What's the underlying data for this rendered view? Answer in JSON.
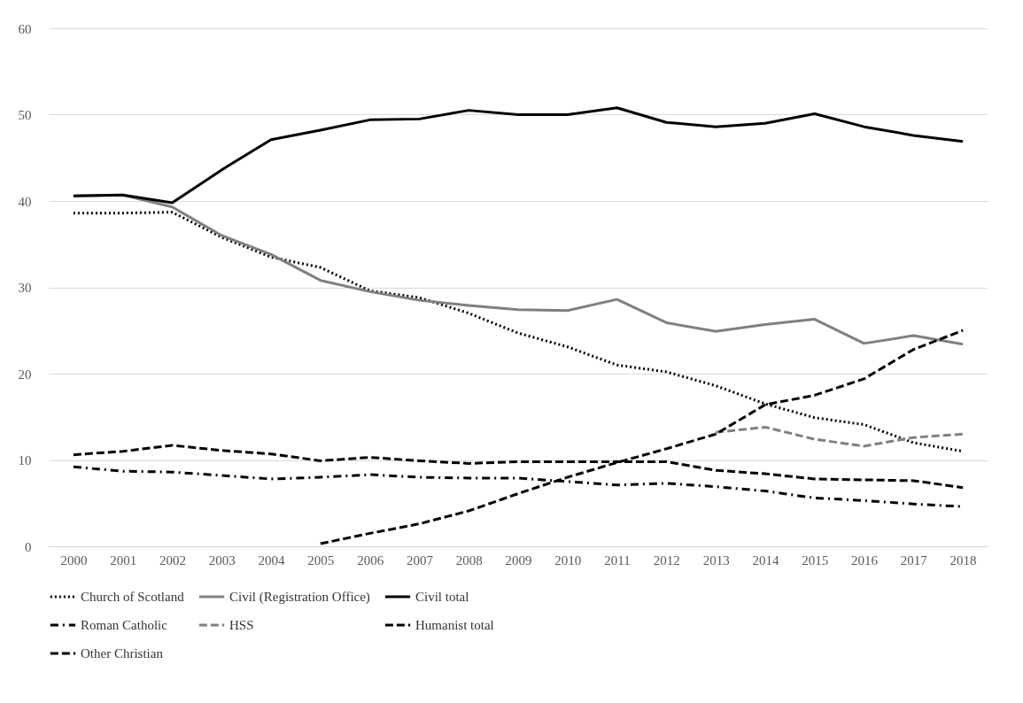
{
  "chart_data": {
    "type": "line",
    "categories": [
      "2000",
      "2001",
      "2002",
      "2003",
      "2004",
      "2005",
      "2006",
      "2007",
      "2008",
      "2009",
      "2010",
      "2011",
      "2012",
      "2013",
      "2014",
      "2015",
      "2016",
      "2017",
      "2018"
    ],
    "series": [
      {
        "name": "Church of Scotland",
        "color": "#000000",
        "line_style": "dotted",
        "values": [
          38.6,
          38.6,
          38.7,
          35.8,
          33.5,
          32.3,
          29.6,
          28.8,
          27.0,
          24.7,
          23.1,
          21.0,
          20.2,
          18.6,
          16.5,
          14.9,
          14.1,
          12.0,
          11.0
        ]
      },
      {
        "name": "Civil (Registration Office)",
        "color": "#808080",
        "line_style": "solid",
        "values": [
          40.6,
          40.7,
          39.3,
          36.0,
          33.8,
          30.8,
          29.5,
          28.5,
          27.9,
          27.4,
          27.3,
          28.6,
          25.9,
          24.9,
          25.7,
          26.3,
          23.5,
          24.4,
          23.4
        ]
      },
      {
        "name": "Civil total",
        "color": "#000000",
        "line_style": "solid",
        "values": [
          40.6,
          40.7,
          39.8,
          43.6,
          47.1,
          48.2,
          49.4,
          49.5,
          50.5,
          50.0,
          50.0,
          50.8,
          49.1,
          48.6,
          49.0,
          50.1,
          48.6,
          47.6,
          46.9
        ]
      },
      {
        "name": "Roman Catholic",
        "color": "#000000",
        "line_style": "dashdot",
        "values": [
          9.2,
          8.7,
          8.6,
          8.2,
          7.8,
          8.0,
          8.3,
          8.0,
          7.9,
          7.9,
          7.5,
          7.1,
          7.3,
          6.9,
          6.4,
          5.6,
          5.3,
          4.9,
          4.6
        ]
      },
      {
        "name": "HSS",
        "color": "#808080",
        "line_style": "dashed",
        "values": [
          null,
          null,
          null,
          null,
          null,
          null,
          null,
          null,
          null,
          null,
          null,
          null,
          null,
          13.2,
          13.8,
          12.4,
          11.6,
          12.6,
          13.0
        ]
      },
      {
        "name": "Humanist total",
        "color": "#000000",
        "line_style": "dashed",
        "values": [
          null,
          null,
          null,
          null,
          null,
          0.3,
          1.5,
          2.6,
          4.1,
          6.1,
          8.0,
          9.7,
          11.3,
          13.0,
          16.4,
          17.5,
          19.4,
          22.8,
          25.0
        ]
      },
      {
        "name": "Other Christian",
        "color": "#000000",
        "line_style": "dashed",
        "values": [
          10.6,
          11.0,
          11.7,
          11.1,
          10.7,
          9.9,
          10.3,
          9.9,
          9.6,
          9.8,
          9.8,
          9.8,
          9.8,
          8.8,
          8.4,
          7.8,
          7.7,
          7.6,
          6.8
        ]
      }
    ],
    "ylim": [
      0,
      60
    ],
    "yticks": [
      0,
      10,
      20,
      30,
      40,
      50,
      60
    ],
    "grid": "y",
    "legend": "bottom"
  }
}
